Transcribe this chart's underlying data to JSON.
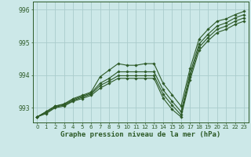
{
  "title": "Graphe pression niveau de la mer (hPa)",
  "bg_color": "#cce8e8",
  "grid_color": "#aacccc",
  "line_color": "#2d5a27",
  "x_min": -0.5,
  "x_max": 23.5,
  "y_min": 992.55,
  "y_max": 996.25,
  "yticks": [
    993,
    994,
    995,
    996
  ],
  "xticks": [
    0,
    1,
    2,
    3,
    4,
    5,
    6,
    7,
    8,
    9,
    10,
    11,
    12,
    13,
    14,
    15,
    16,
    17,
    18,
    19,
    20,
    21,
    22,
    23
  ],
  "series": [
    [
      992.72,
      992.88,
      993.05,
      993.12,
      993.28,
      993.38,
      993.48,
      993.95,
      994.15,
      994.35,
      994.3,
      994.3,
      994.35,
      994.35,
      993.75,
      993.4,
      993.05,
      994.2,
      995.1,
      995.4,
      995.65,
      995.72,
      995.85,
      995.95
    ],
    [
      992.72,
      992.88,
      993.05,
      993.1,
      993.25,
      993.35,
      993.45,
      993.75,
      993.9,
      994.1,
      994.1,
      994.1,
      994.1,
      994.1,
      993.55,
      993.2,
      992.88,
      994.05,
      994.95,
      995.25,
      995.5,
      995.6,
      995.75,
      995.85
    ],
    [
      992.72,
      992.85,
      993.02,
      993.08,
      993.22,
      993.32,
      993.42,
      993.68,
      993.82,
      993.98,
      993.98,
      993.98,
      993.98,
      993.98,
      993.42,
      993.08,
      992.78,
      993.95,
      994.85,
      995.15,
      995.4,
      995.5,
      995.65,
      995.75
    ],
    [
      992.72,
      992.82,
      993.0,
      993.05,
      993.2,
      993.28,
      993.38,
      993.6,
      993.75,
      993.9,
      993.9,
      993.9,
      993.9,
      993.9,
      993.3,
      992.95,
      992.72,
      993.85,
      994.75,
      995.05,
      995.3,
      995.4,
      995.55,
      995.65
    ]
  ],
  "tick_fontsize": 5,
  "xlabel_fontsize": 6.5,
  "marker_size": 1.8,
  "line_width": 0.8
}
